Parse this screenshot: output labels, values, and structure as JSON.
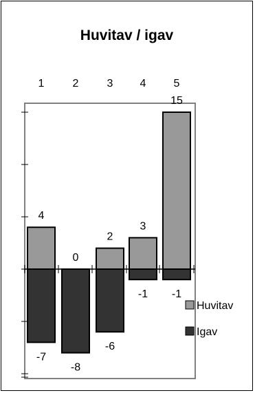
{
  "chart_data": {
    "type": "bar",
    "title": "Huvitav / igav",
    "categories": [
      "1",
      "2",
      "3",
      "4",
      "5"
    ],
    "series": [
      {
        "name": "Huvitav",
        "values": [
          4,
          0,
          2,
          3,
          15
        ],
        "color": "#999999"
      },
      {
        "name": "Igav",
        "values": [
          -7,
          -8,
          -6,
          -1,
          -1
        ],
        "color": "#333333"
      }
    ],
    "category_axis_position": "top",
    "ylim": [
      -11,
      17
    ],
    "legend_position": "right",
    "grid": false
  }
}
